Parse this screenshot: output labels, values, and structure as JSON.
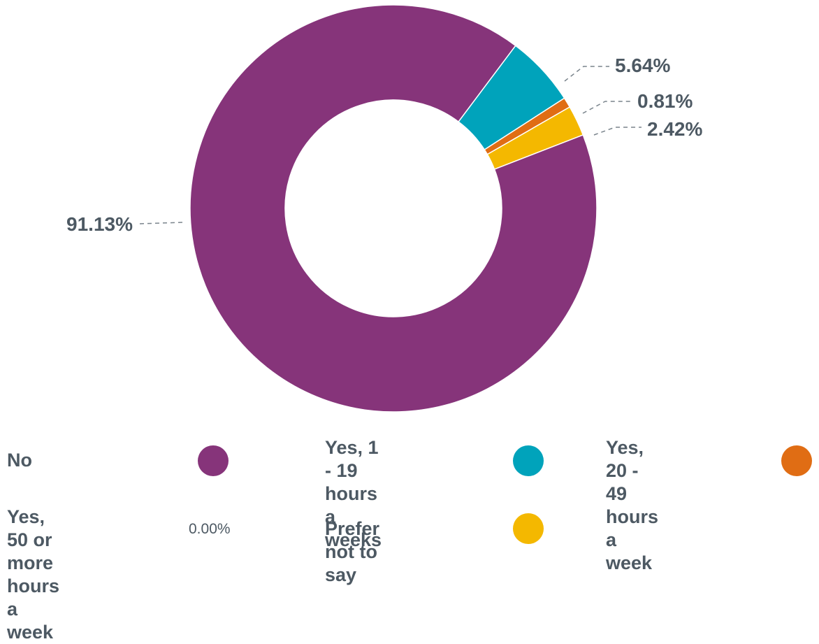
{
  "chart_data": {
    "type": "pie",
    "title": "",
    "donut": true,
    "slices": [
      {
        "label": "No",
        "value": 91.13,
        "display": "91.13%",
        "color": "#86347a"
      },
      {
        "label": "Yes, 1 - 19\nhours a weeks",
        "value": 5.64,
        "display": "5.64%",
        "color": "#00a3bb"
      },
      {
        "label": "Yes, 20 - 49\nhours a week",
        "value": 0.81,
        "display": "0.81%",
        "color": "#e06d14"
      },
      {
        "label": "Prefer not to say",
        "value": 2.42,
        "display": "2.42%",
        "color": "#f4b800"
      },
      {
        "label": "Yes, 50 or more\nhours a week",
        "value": 0.0,
        "display": "0.00%",
        "color": "#d9d9d9"
      }
    ],
    "legend_placement": "bottom"
  }
}
